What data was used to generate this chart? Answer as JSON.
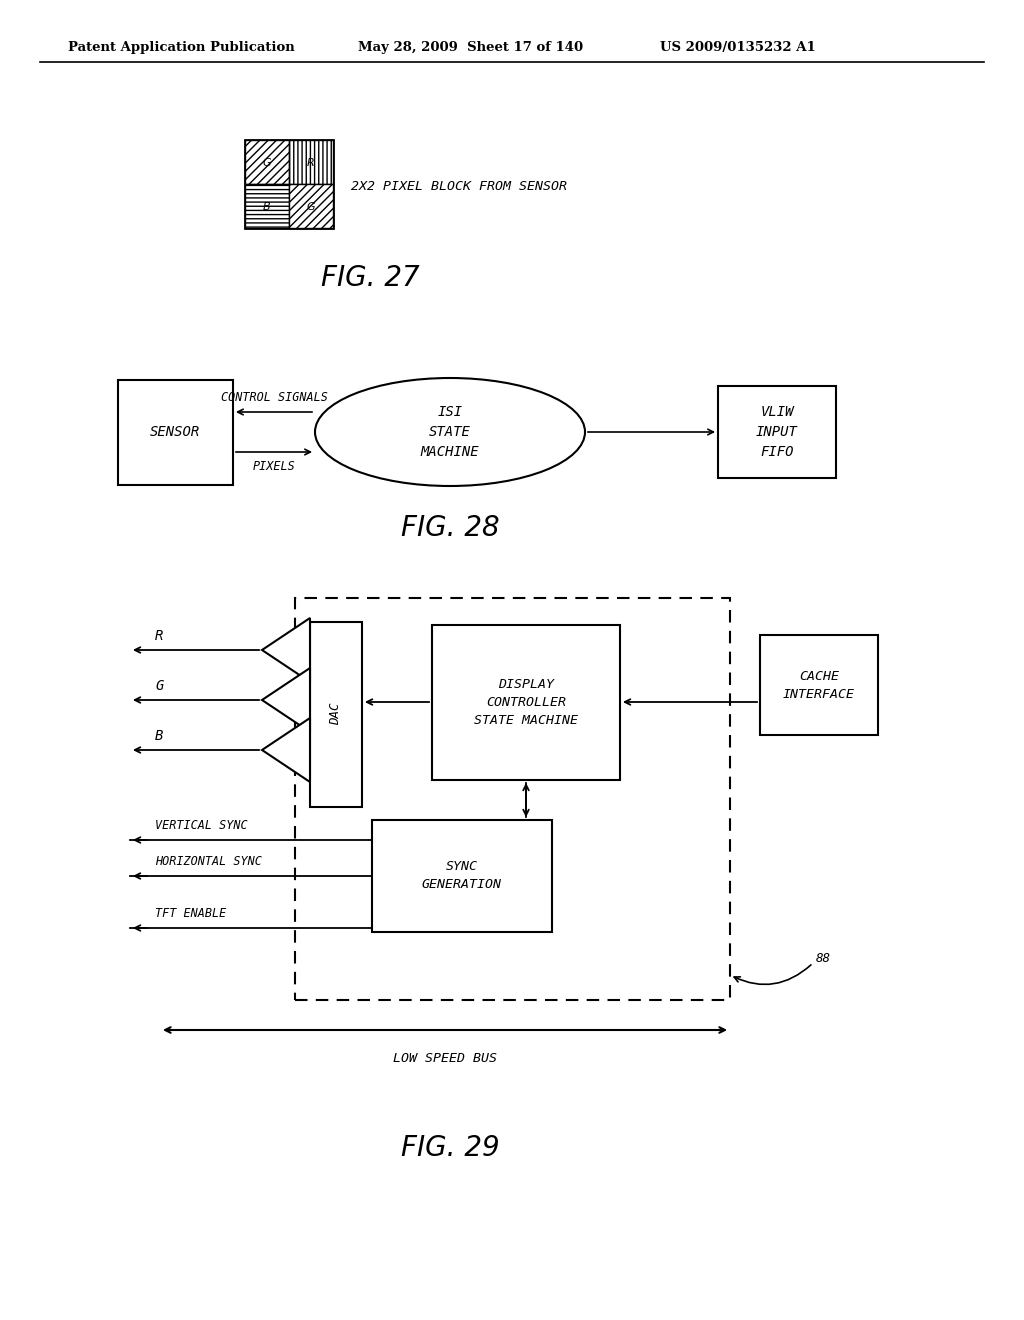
{
  "bg_color": "#ffffff",
  "header_left": "Patent Application Publication",
  "header_mid": "May 28, 2009  Sheet 17 of 140",
  "header_right": "US 2009/0135232 A1",
  "fig27_label": "FIG. 27",
  "fig28_label": "FIG. 28",
  "fig29_label": "FIG. 29",
  "pixel_block_label": "2X2 PIXEL BLOCK FROM SENSOR",
  "sensor_label": "SENSOR",
  "isi_label": "ISI\nSTATE\nMACHINE",
  "vliw_label": "VLIW\nINPUT\nFIFO",
  "control_signals_label": "CONTROL SIGNALS",
  "pixels_label": "PIXELS",
  "dac_label": "DAC",
  "display_ctrl_label": "DISPLAY\nCONTROLLER\nSTATE MACHINE",
  "cache_label": "CACHE\nINTERFACE",
  "sync_gen_label": "SYNC\nGENERATION",
  "r_label": "R",
  "g_label": "G",
  "b_label": "B",
  "vsync_label": "VERTICAL SYNC",
  "hsync_label": "HORIZONTAL SYNC",
  "tft_label": "TFT ENABLE",
  "low_speed_bus_label": "LOW SPEED BUS",
  "ref_88": "88"
}
